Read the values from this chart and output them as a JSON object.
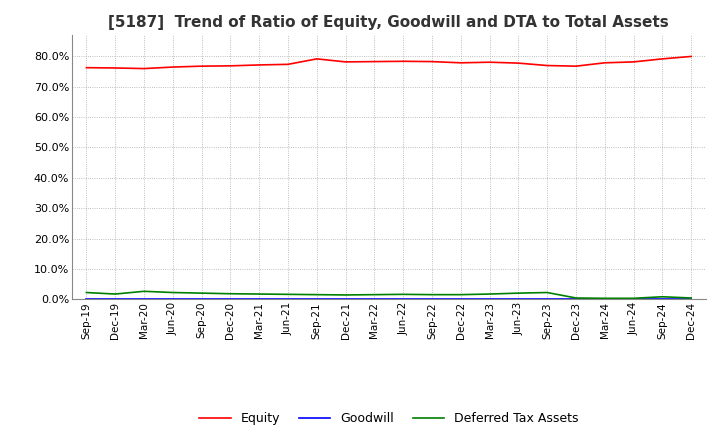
{
  "title": "[5187]  Trend of Ratio of Equity, Goodwill and DTA to Total Assets",
  "title_fontsize": 11,
  "x_labels": [
    "Sep-19",
    "Dec-19",
    "Mar-20",
    "Jun-20",
    "Sep-20",
    "Dec-20",
    "Mar-21",
    "Jun-21",
    "Sep-21",
    "Dec-21",
    "Mar-22",
    "Jun-22",
    "Sep-22",
    "Dec-22",
    "Mar-23",
    "Jun-23",
    "Sep-23",
    "Dec-23",
    "Mar-24",
    "Jun-24",
    "Sep-24",
    "Dec-24"
  ],
  "equity": [
    0.763,
    0.762,
    0.76,
    0.765,
    0.768,
    0.769,
    0.772,
    0.774,
    0.792,
    0.782,
    0.783,
    0.784,
    0.783,
    0.779,
    0.781,
    0.778,
    0.77,
    0.768,
    0.779,
    0.782,
    0.792,
    0.8
  ],
  "goodwill": [
    0.0,
    0.0,
    0.0,
    0.0,
    0.0,
    0.0,
    0.0,
    0.0,
    0.0,
    0.0,
    0.0,
    0.0,
    0.0,
    0.0,
    0.0,
    0.0,
    0.0,
    0.0,
    0.0,
    0.0,
    0.0,
    0.0
  ],
  "dta": [
    0.022,
    0.017,
    0.026,
    0.022,
    0.02,
    0.018,
    0.017,
    0.016,
    0.015,
    0.014,
    0.015,
    0.016,
    0.015,
    0.015,
    0.017,
    0.02,
    0.022,
    0.004,
    0.003,
    0.003,
    0.008,
    0.004
  ],
  "equity_color": "#ff0000",
  "goodwill_color": "#0000ff",
  "dta_color": "#008000",
  "ylim": [
    0.0,
    0.87
  ],
  "yticks": [
    0.0,
    0.1,
    0.2,
    0.3,
    0.4,
    0.5,
    0.6,
    0.7,
    0.8
  ],
  "background_color": "#ffffff",
  "grid_color": "#aaaaaa",
  "legend_labels": [
    "Equity",
    "Goodwill",
    "Deferred Tax Assets"
  ]
}
